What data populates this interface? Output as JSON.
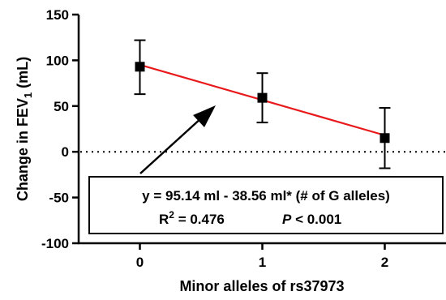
{
  "chart_data": {
    "type": "scatter",
    "xlabel": "Minor alleles of rs37973",
    "ylabel_main": "Change in FEV",
    "ylabel_sub": "1",
    "ylabel_unit": " (mL)",
    "x_ticks": [
      "0",
      "1",
      "2"
    ],
    "y_ticks": [
      "-100",
      "-50",
      "0",
      "50",
      "100",
      "150"
    ],
    "xlim": [
      -0.5,
      2.5
    ],
    "ylim": [
      -100,
      150
    ],
    "grid": false,
    "points": [
      {
        "x": 0,
        "y": 93,
        "err_low": 63,
        "err_high": 122
      },
      {
        "x": 1,
        "y": 59,
        "err_low": 32,
        "err_high": 86
      },
      {
        "x": 2,
        "y": 15,
        "err_low": -18,
        "err_high": 48
      }
    ],
    "regression": {
      "intercept": 95.14,
      "slope": -38.56,
      "color": "#e8191b"
    },
    "reference_line": {
      "y": 0,
      "style": "dotted"
    },
    "annotation": {
      "equation": "y = 95.14 ml - 38.56 ml* (# of G alleles)",
      "r2_prefix": "R",
      "r2_sup": "2",
      "r2_value": " = 0.476",
      "p_symbol": "P",
      "p_value": " < 0.001"
    }
  }
}
